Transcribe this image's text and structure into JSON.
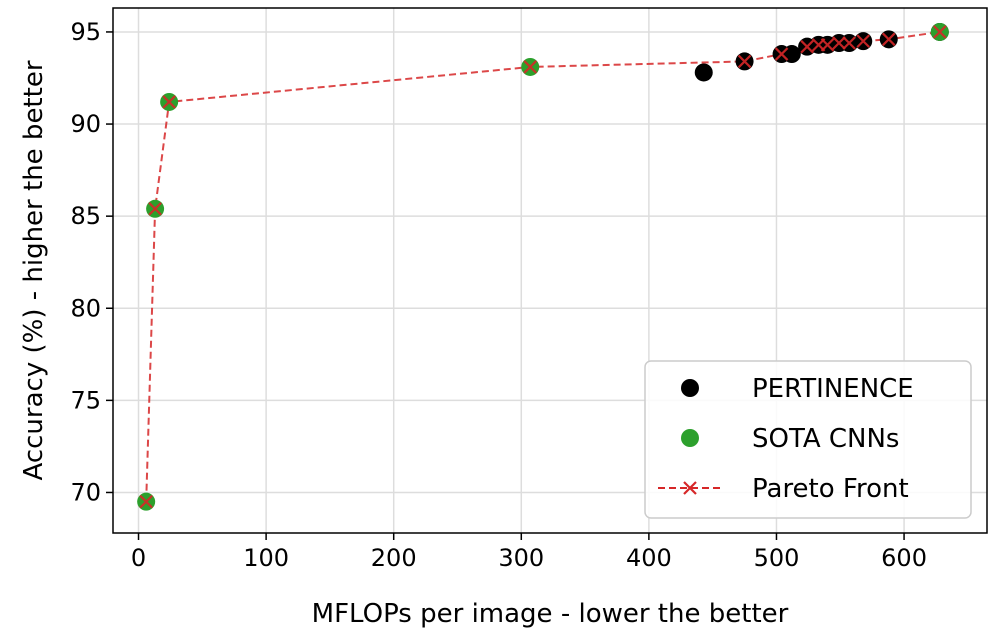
{
  "chart_data": {
    "type": "scatter",
    "title": "",
    "xlabel": "MFLOPs per image - lower the better",
    "ylabel": "Accuracy (%) - higher the better",
    "xlim": [
      -20,
      665
    ],
    "ylim": [
      67.8,
      96.3
    ],
    "xticks": [
      0,
      100,
      200,
      300,
      400,
      500,
      600
    ],
    "yticks": [
      70,
      75,
      80,
      85,
      90,
      95
    ],
    "grid": true,
    "legend_position": "bottom-right",
    "series": [
      {
        "name": "PERTINENCE",
        "marker": "circle",
        "color": "#000000",
        "x": [
          443,
          475,
          504,
          512,
          524,
          533,
          540,
          549,
          557,
          568,
          588,
          628
        ],
        "y": [
          92.8,
          93.4,
          93.8,
          93.8,
          94.2,
          94.3,
          94.3,
          94.4,
          94.4,
          94.5,
          94.6,
          95.0
        ]
      },
      {
        "name": "SOTA CNNs",
        "marker": "circle",
        "color": "#2ca02c",
        "x": [
          6,
          13,
          24,
          307,
          628
        ],
        "y": [
          69.5,
          85.4,
          91.2,
          93.1,
          95.0
        ]
      },
      {
        "name": "Pareto Front",
        "marker": "x",
        "line": "dashed",
        "color": "#d62728",
        "x": [
          6,
          13,
          24,
          307,
          475,
          504,
          524,
          533,
          540,
          549,
          557,
          568,
          588,
          628
        ],
        "y": [
          69.5,
          85.4,
          91.2,
          93.1,
          93.4,
          93.8,
          94.2,
          94.3,
          94.3,
          94.4,
          94.4,
          94.5,
          94.6,
          95.0
        ]
      }
    ]
  }
}
